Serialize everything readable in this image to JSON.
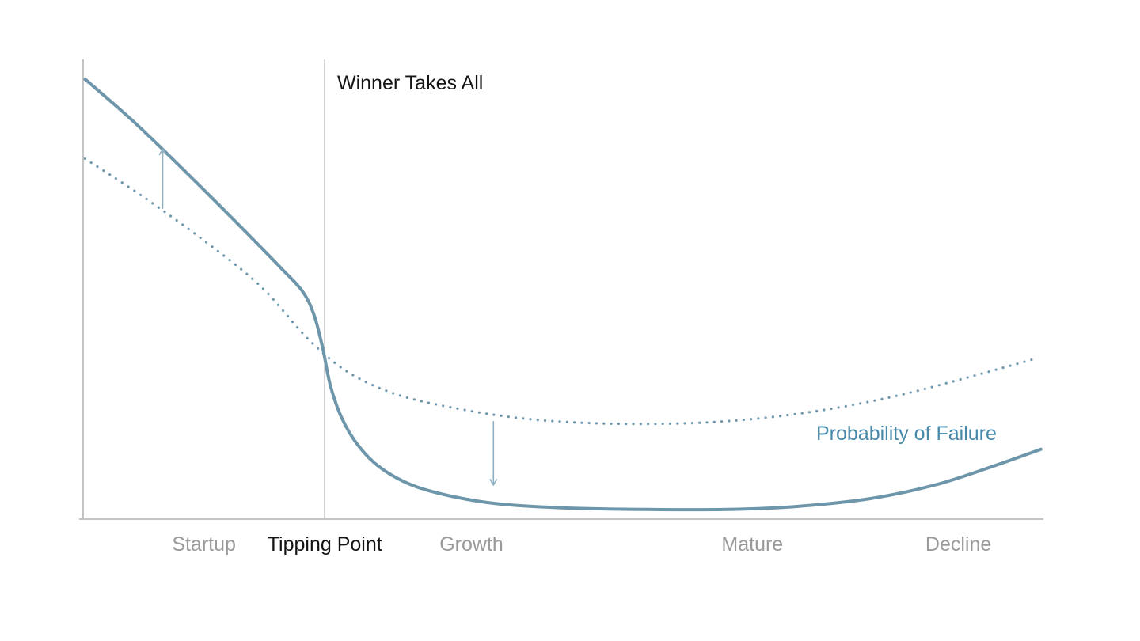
{
  "chart_data": {
    "type": "line",
    "title": "",
    "xlabel": "",
    "ylabel": "",
    "xlim": [
      0,
      100
    ],
    "ylim": [
      0,
      100
    ],
    "grid": false,
    "legend": "none",
    "x_axis": {
      "stages": [
        {
          "label": "Startup",
          "x_center": 12.6,
          "emphasis": false
        },
        {
          "label": "Tipping Point",
          "x_center": 25.2,
          "emphasis": true
        },
        {
          "label": "Growth",
          "x_center": 40.5,
          "emphasis": false
        },
        {
          "label": "Mature",
          "x_center": 69.8,
          "emphasis": false
        },
        {
          "label": "Decline",
          "x_center": 91.3,
          "emphasis": false
        }
      ]
    },
    "series": [
      {
        "id": "failure-solid",
        "name": "Probability of Failure",
        "line_style": "solid",
        "points": [
          [
            0.2,
            95.7
          ],
          [
            5.4,
            86.2
          ],
          [
            11.1,
            74.7
          ],
          [
            16.9,
            62.6
          ],
          [
            20.6,
            54.7
          ],
          [
            22.9,
            49.5
          ],
          [
            24.1,
            44.3
          ],
          [
            25.0,
            37.1
          ],
          [
            25.8,
            29.0
          ],
          [
            27.0,
            21.9
          ],
          [
            28.7,
            16.0
          ],
          [
            31.0,
            11.2
          ],
          [
            34.3,
            7.4
          ],
          [
            38.4,
            5.0
          ],
          [
            43.4,
            3.3
          ],
          [
            50.8,
            2.4
          ],
          [
            59.0,
            2.1
          ],
          [
            67.3,
            2.1
          ],
          [
            74.7,
            2.8
          ],
          [
            82.2,
            4.5
          ],
          [
            88.8,
            7.4
          ],
          [
            94.5,
            11.2
          ],
          [
            99.9,
            15.2
          ]
        ]
      },
      {
        "id": "failure-dotted",
        "name": "",
        "line_style": "dotted",
        "points": [
          [
            0.2,
            78.4
          ],
          [
            6.2,
            70.2
          ],
          [
            12.8,
            60.3
          ],
          [
            18.6,
            50.5
          ],
          [
            23.5,
            39.1
          ],
          [
            27.7,
            31.9
          ],
          [
            32.6,
            27.2
          ],
          [
            38.4,
            24.3
          ],
          [
            45.0,
            22.1
          ],
          [
            51.6,
            21.0
          ],
          [
            58.2,
            20.7
          ],
          [
            64.8,
            21.0
          ],
          [
            71.4,
            22.1
          ],
          [
            78.0,
            24.0
          ],
          [
            84.6,
            26.7
          ],
          [
            91.2,
            30.2
          ],
          [
            99.5,
            35.0
          ]
        ]
      }
    ],
    "annotations": {
      "vertical_line": {
        "x": 25.2,
        "label": "Winner Takes All"
      },
      "series_label": {
        "text": "Probability of Failure"
      },
      "arrows": [
        {
          "direction": "up",
          "x": 8.3,
          "y_from": 67.6,
          "y_to": 80.5
        },
        {
          "direction": "down",
          "x": 42.8,
          "y_from": 21.2,
          "y_to": 7.4
        }
      ]
    },
    "colors": {
      "curve": "#6e96aa",
      "dotted": "#7099ad",
      "arrow": "#8db0c0",
      "axis": "#c4c4c4",
      "vline": "#b4b4b4",
      "stage_label": "#9a9a9a",
      "emphasis_label": "#141414",
      "series_label": "#4689a9"
    }
  }
}
